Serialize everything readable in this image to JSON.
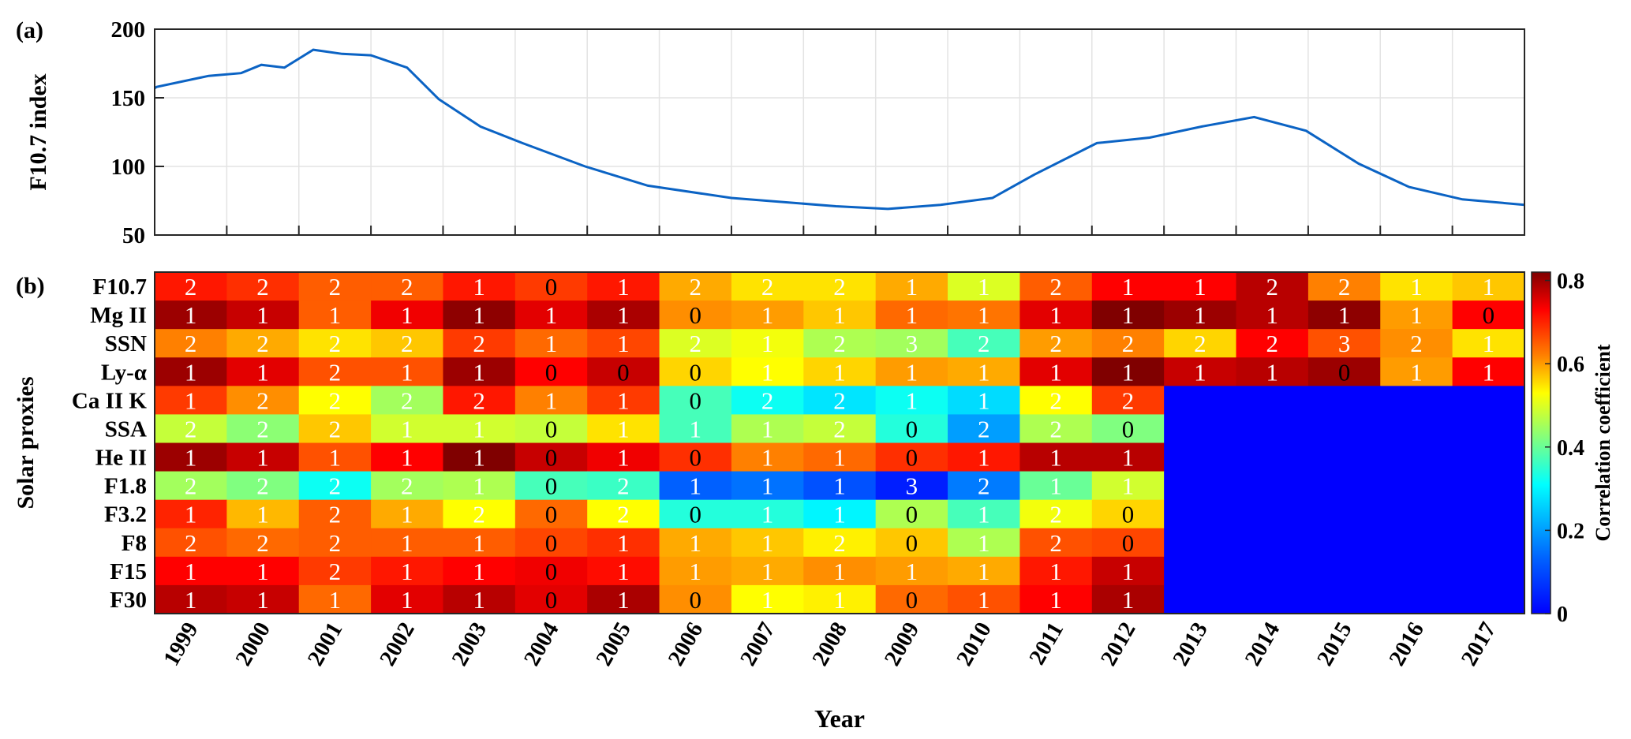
{
  "chart_data": [
    {
      "panel_label": "(a)",
      "type": "line",
      "title": "",
      "xlabel": "",
      "ylabel": "F10.7 index",
      "xlim": [
        1999,
        2018
      ],
      "ylim": [
        50,
        200
      ],
      "yticks": [
        50,
        100,
        150,
        200
      ],
      "grid": true,
      "color": "#0b63c4",
      "series": [
        {
          "name": "F10.7",
          "x": [
            1999.0,
            1999.03,
            1999.75,
            2000.2,
            2000.48,
            2000.8,
            2001.2,
            2001.6,
            2002.0,
            2002.5,
            2002.94,
            2003.52,
            2004.1,
            2004.97,
            2005.84,
            2007.0,
            2008.45,
            2009.17,
            2009.9,
            2010.62,
            2011.2,
            2012.07,
            2012.8,
            2013.52,
            2014.25,
            2014.97,
            2015.7,
            2016.4,
            2017.14,
            2018.0
          ],
          "y": [
            157,
            158,
            166,
            168,
            174,
            172,
            185,
            182,
            181,
            172,
            149,
            129,
            117,
            100,
            86,
            77,
            71,
            69,
            72,
            77,
            94,
            117,
            121,
            129,
            136,
            126,
            102,
            85,
            76,
            72
          ]
        }
      ]
    },
    {
      "panel_label": "(b)",
      "type": "heatmap",
      "xlabel": "Year",
      "ylabel": "Solar proxies",
      "colorbar_label": "Correlation coefficient",
      "clim": [
        0,
        0.82
      ],
      "colorbar_ticks": [
        "0",
        "0.2",
        "0.4",
        "0.6",
        "0.8"
      ],
      "colorbar_tick_values": [
        0,
        0.2,
        0.4,
        0.6,
        0.8
      ],
      "missing_color": "#0000ff",
      "x": [
        "1999",
        "2000",
        "2001",
        "2002",
        "2003",
        "2004",
        "2005",
        "2006",
        "2007",
        "2008",
        "2009",
        "2010",
        "2011",
        "2012",
        "2013",
        "2014",
        "2015",
        "2016",
        "2017"
      ],
      "y": [
        "F10.7",
        "Mg II",
        "SSN",
        "Ly-α",
        "Ca II K",
        "SSA",
        "He II",
        "F1.8",
        "F3.2",
        "F8",
        "F15",
        "F30"
      ],
      "values": [
        [
          0.71,
          0.69,
          0.65,
          0.65,
          0.71,
          0.68,
          0.71,
          0.59,
          0.55,
          0.55,
          0.59,
          0.5,
          0.65,
          0.73,
          0.73,
          0.78,
          0.62,
          0.55,
          0.57
        ],
        [
          0.8,
          0.77,
          0.65,
          0.74,
          0.81,
          0.75,
          0.79,
          0.61,
          0.6,
          0.57,
          0.64,
          0.63,
          0.75,
          0.82,
          0.8,
          0.78,
          0.81,
          0.6,
          0.73
        ],
        [
          0.62,
          0.59,
          0.55,
          0.57,
          0.68,
          0.64,
          0.67,
          0.5,
          0.52,
          0.46,
          0.45,
          0.37,
          0.6,
          0.62,
          0.56,
          0.73,
          0.66,
          0.61,
          0.55
        ],
        [
          0.8,
          0.75,
          0.66,
          0.66,
          0.8,
          0.73,
          0.77,
          0.56,
          0.53,
          0.56,
          0.6,
          0.59,
          0.75,
          0.82,
          0.77,
          0.78,
          0.8,
          0.6,
          0.73
        ],
        [
          0.68,
          0.61,
          0.53,
          0.45,
          0.71,
          0.62,
          0.68,
          0.37,
          0.32,
          0.28,
          0.32,
          0.27,
          0.53,
          0.68,
          null,
          null,
          null,
          null,
          null
        ],
        [
          0.48,
          0.43,
          0.57,
          0.49,
          0.49,
          0.48,
          0.55,
          0.37,
          0.46,
          0.48,
          0.34,
          0.2,
          0.46,
          0.42,
          null,
          null,
          null,
          null,
          null
        ],
        [
          0.8,
          0.77,
          0.66,
          0.73,
          0.82,
          0.77,
          0.74,
          0.69,
          0.62,
          0.64,
          0.69,
          0.71,
          0.78,
          0.78,
          null,
          null,
          null,
          null,
          null
        ],
        [
          0.45,
          0.42,
          0.32,
          0.45,
          0.46,
          0.37,
          0.36,
          0.13,
          0.15,
          0.11,
          0.04,
          0.16,
          0.4,
          0.49,
          null,
          null,
          null,
          null,
          null
        ],
        [
          0.7,
          0.58,
          0.65,
          0.59,
          0.53,
          0.64,
          0.53,
          0.34,
          0.34,
          0.3,
          0.46,
          0.37,
          0.52,
          0.56,
          null,
          null,
          null,
          null,
          null
        ],
        [
          0.66,
          0.64,
          0.65,
          0.65,
          0.65,
          0.67,
          0.69,
          0.59,
          0.57,
          0.54,
          0.57,
          0.46,
          0.66,
          0.67,
          null,
          null,
          null,
          null,
          null
        ],
        [
          0.73,
          0.73,
          0.68,
          0.71,
          0.73,
          0.74,
          0.72,
          0.6,
          0.59,
          0.61,
          0.6,
          0.59,
          0.71,
          0.77,
          null,
          null,
          null,
          null,
          null
        ],
        [
          0.78,
          0.77,
          0.64,
          0.75,
          0.78,
          0.75,
          0.79,
          0.61,
          0.53,
          0.54,
          0.64,
          0.66,
          0.73,
          0.79,
          null,
          null,
          null,
          null,
          null
        ]
      ],
      "annotations": [
        [
          "2",
          "2",
          "2",
          "2",
          "1",
          "0",
          "1",
          "2",
          "2",
          "2",
          "1",
          "1",
          "2",
          "1",
          "1",
          "2",
          "2",
          "1",
          "1"
        ],
        [
          "1",
          "1",
          "1",
          "1",
          "1",
          "1",
          "1",
          "0",
          "1",
          "1",
          "1",
          "1",
          "1",
          "1",
          "1",
          "1",
          "1",
          "1",
          "0"
        ],
        [
          "2",
          "2",
          "2",
          "2",
          "2",
          "1",
          "1",
          "2",
          "1",
          "2",
          "3",
          "2",
          "2",
          "2",
          "2",
          "2",
          "3",
          "2",
          "1"
        ],
        [
          "1",
          "1",
          "2",
          "1",
          "1",
          "0",
          "0",
          "0",
          "1",
          "1",
          "1",
          "1",
          "1",
          "1",
          "1",
          "1",
          "0",
          "1",
          "1"
        ],
        [
          "1",
          "2",
          "2",
          "2",
          "2",
          "1",
          "1",
          "0",
          "2",
          "2",
          "1",
          "1",
          "2",
          "2",
          "",
          "",
          "",
          "",
          ""
        ],
        [
          "2",
          "2",
          "2",
          "1",
          "1",
          "0",
          "1",
          "1",
          "1",
          "2",
          "0",
          "2",
          "2",
          "0",
          "",
          "",
          "",
          "",
          ""
        ],
        [
          "1",
          "1",
          "1",
          "1",
          "1",
          "0",
          "1",
          "0",
          "1",
          "1",
          "0",
          "1",
          "1",
          "1",
          "",
          "",
          "",
          "",
          ""
        ],
        [
          "2",
          "2",
          "2",
          "2",
          "1",
          "0",
          "2",
          "1",
          "1",
          "1",
          "3",
          "2",
          "1",
          "1",
          "",
          "",
          "",
          "",
          ""
        ],
        [
          "1",
          "1",
          "2",
          "1",
          "2",
          "0",
          "2",
          "0",
          "1",
          "1",
          "0",
          "1",
          "2",
          "0",
          "",
          "",
          "",
          "",
          ""
        ],
        [
          "2",
          "2",
          "2",
          "1",
          "1",
          "0",
          "1",
          "1",
          "1",
          "2",
          "0",
          "1",
          "2",
          "0",
          "",
          "",
          "",
          "",
          ""
        ],
        [
          "1",
          "1",
          "2",
          "1",
          "1",
          "0",
          "1",
          "1",
          "1",
          "1",
          "1",
          "1",
          "1",
          "1",
          "",
          "",
          "",
          "",
          ""
        ],
        [
          "1",
          "1",
          "1",
          "1",
          "1",
          "0",
          "1",
          "0",
          "1",
          "1",
          "0",
          "1",
          "1",
          "1",
          "",
          "",
          "",
          "",
          ""
        ]
      ]
    }
  ]
}
